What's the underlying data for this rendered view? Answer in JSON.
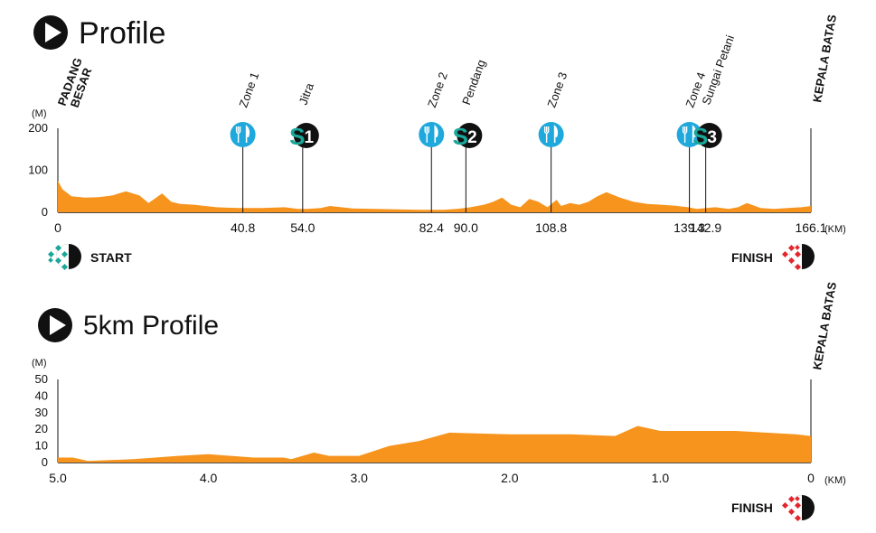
{
  "colors": {
    "profile_fill": "#f7941d",
    "feed": "#1fa8dc",
    "sprint_teal": "#1aa79a",
    "sprint_dark": "#111111",
    "finish_red": "#e3262e",
    "start_teal": "#1aa79a"
  },
  "icons": {
    "section": "play-triangle-icon",
    "feed": "fork-knife-icon",
    "start": "start-checker-icon",
    "finish": "finish-checker-icon"
  },
  "profile": {
    "title": "Profile",
    "y_unit": "(M)",
    "x_unit": "(KM)",
    "start_label": "START",
    "finish_label": "FINISH",
    "start_place": [
      "PADANG",
      "BESAR"
    ],
    "end_place": "KEPALA BATAS",
    "chart_data": {
      "type": "area",
      "xlim": [
        0,
        166.1
      ],
      "ylim": [
        0,
        200
      ],
      "yticks": [
        "0",
        "100",
        "200"
      ],
      "xticks": [
        {
          "value": 0,
          "label": "0"
        },
        {
          "value": 40.8,
          "label": "40.8"
        },
        {
          "value": 54.0,
          "label": "54.0"
        },
        {
          "value": 82.4,
          "label": "82.4"
        },
        {
          "value": 90.0,
          "label": "90.0"
        },
        {
          "value": 108.8,
          "label": "108.8"
        },
        {
          "value": 139.3,
          "label": "139.3"
        },
        {
          "value": 142.9,
          "label": "142.9"
        },
        {
          "value": 166.1,
          "label": "166.1"
        }
      ],
      "x": [
        0,
        1,
        3,
        6,
        9,
        12,
        15,
        18,
        20,
        23,
        25,
        27,
        30,
        35,
        40,
        45,
        50,
        53,
        55,
        58,
        60,
        65,
        70,
        75,
        80,
        85,
        88,
        91,
        94,
        96,
        98,
        100,
        102,
        104,
        106,
        108,
        110,
        111,
        113,
        115,
        117,
        119,
        121,
        124,
        127,
        130,
        133,
        136,
        139,
        141,
        143,
        145,
        148,
        150,
        152,
        155,
        158,
        161,
        164,
        166.1
      ],
      "y": [
        75,
        55,
        38,
        35,
        36,
        40,
        50,
        40,
        22,
        45,
        25,
        20,
        18,
        12,
        10,
        10,
        12,
        8,
        8,
        10,
        15,
        9,
        8,
        7,
        6,
        6,
        8,
        12,
        18,
        25,
        35,
        18,
        12,
        32,
        25,
        12,
        30,
        15,
        22,
        18,
        25,
        38,
        48,
        35,
        25,
        20,
        18,
        16,
        12,
        8,
        10,
        12,
        8,
        12,
        22,
        10,
        8,
        10,
        12,
        15
      ]
    },
    "markers": [
      {
        "type": "feed",
        "label": "Zone 1",
        "km": 40.8
      },
      {
        "type": "sprint",
        "letter": "S",
        "number": "1",
        "label": "Jitra",
        "km": 54.0
      },
      {
        "type": "feed",
        "label": "Zone 2",
        "km": 82.4
      },
      {
        "type": "sprint",
        "letter": "S",
        "number": "2",
        "label": "Pendang",
        "km": 90.0
      },
      {
        "type": "feed",
        "label": "Zone 3",
        "km": 108.8
      },
      {
        "type": "feed",
        "label": "Zone 4",
        "km": 139.3
      },
      {
        "type": "sprint",
        "letter": "S",
        "number": "3",
        "label": "Sungai Petani",
        "km": 142.9
      }
    ]
  },
  "profile5": {
    "title": "5km Profile",
    "y_unit": "(M)",
    "x_unit": "(KM)",
    "finish_label": "FINISH",
    "end_place": "KEPALA BATAS",
    "chart_data": {
      "type": "area",
      "xlim": [
        5,
        0
      ],
      "ylim": [
        0,
        50
      ],
      "yticks": [
        "0",
        "10",
        "20",
        "30",
        "40",
        "50"
      ],
      "xticks": [
        {
          "value": 5,
          "label": "5.0"
        },
        {
          "value": 4,
          "label": "4.0"
        },
        {
          "value": 3,
          "label": "3.0"
        },
        {
          "value": 2,
          "label": "2.0"
        },
        {
          "value": 1,
          "label": "1.0"
        },
        {
          "value": 0,
          "label": "0"
        }
      ],
      "x": [
        5.0,
        4.9,
        4.8,
        4.5,
        4.2,
        4.0,
        3.7,
        3.5,
        3.45,
        3.3,
        3.2,
        3.0,
        2.8,
        2.6,
        2.4,
        2.0,
        1.6,
        1.3,
        1.15,
        1.0,
        0.5,
        0.3,
        0.1,
        0.0
      ],
      "y": [
        3,
        3,
        1,
        2,
        4,
        5,
        3,
        3,
        2,
        6,
        4,
        4,
        10,
        13,
        18,
        17,
        17,
        16,
        22,
        19,
        19,
        18,
        17,
        16
      ]
    }
  }
}
